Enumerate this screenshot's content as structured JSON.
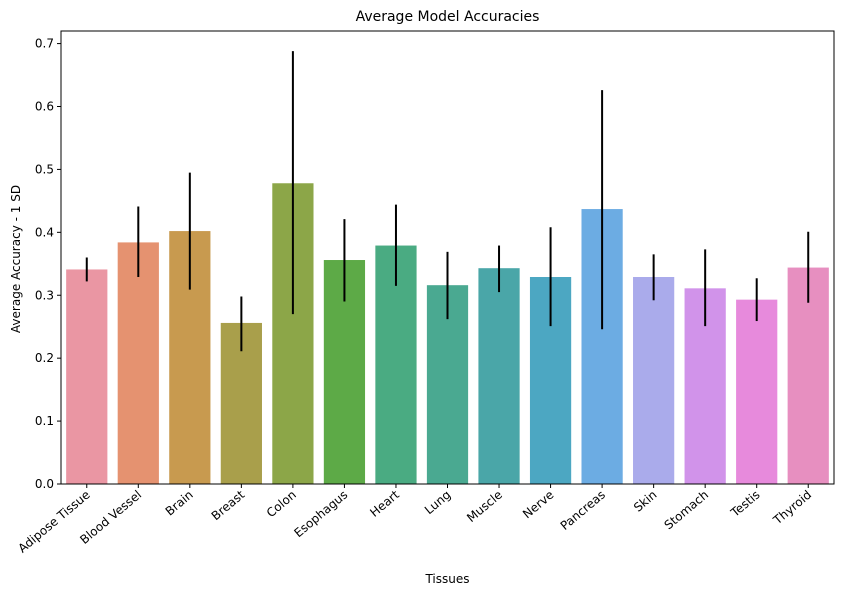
{
  "chart_data": {
    "type": "bar",
    "title": "Average Model Accuracies",
    "xlabel": "Tissues",
    "ylabel": "Average Accuracy - 1 SD",
    "ylim": [
      0,
      0.72
    ],
    "yticks": [
      0.0,
      0.1,
      0.2,
      0.3,
      0.4,
      0.5,
      0.6,
      0.7
    ],
    "ytick_labels": [
      "0.0",
      "0.1",
      "0.2",
      "0.3",
      "0.4",
      "0.5",
      "0.6",
      "0.7"
    ],
    "grid": false,
    "legend": "none",
    "categories": [
      "Adipose Tissue",
      "Blood Vessel",
      "Brain",
      "Breast",
      "Colon",
      "Esophagus",
      "Heart",
      "Lung",
      "Muscle",
      "Nerve",
      "Pancreas",
      "Skin",
      "Stomach",
      "Testis",
      "Thyroid"
    ],
    "values": [
      0.341,
      0.384,
      0.402,
      0.256,
      0.478,
      0.356,
      0.379,
      0.316,
      0.343,
      0.329,
      0.437,
      0.329,
      0.311,
      0.293,
      0.344
    ],
    "error_low": [
      0.322,
      0.329,
      0.309,
      0.211,
      0.27,
      0.29,
      0.315,
      0.262,
      0.305,
      0.251,
      0.246,
      0.292,
      0.251,
      0.259,
      0.288
    ],
    "error_high": [
      0.36,
      0.441,
      0.495,
      0.298,
      0.688,
      0.421,
      0.444,
      0.369,
      0.379,
      0.408,
      0.626,
      0.365,
      0.373,
      0.327,
      0.401
    ],
    "colors": [
      "#ea96a3",
      "#e59270",
      "#c89a4f",
      "#a99f4b",
      "#8ca648",
      "#5daa47",
      "#4aab82",
      "#4aa991",
      "#4aa6a8",
      "#4ca7c2",
      "#6cace3",
      "#aaabeb",
      "#d193ea",
      "#e78adc",
      "#e78fc0"
    ]
  }
}
